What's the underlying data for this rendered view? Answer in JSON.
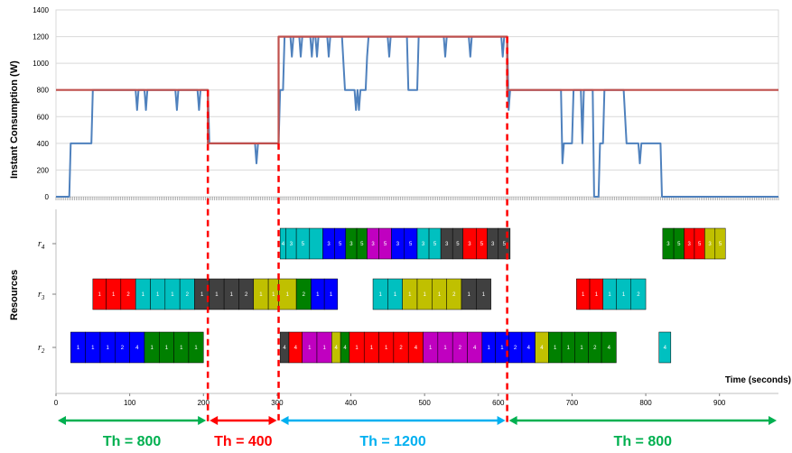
{
  "chart_data": [
    {
      "type": "line",
      "ylabel": "Instant Consumption (W)",
      "xlabel": "",
      "xlim": [
        0,
        980
      ],
      "ylim": [
        0,
        1400
      ],
      "yticks": [
        "0",
        "200",
        "400",
        "600",
        "800",
        "1000",
        "1200",
        "1400"
      ],
      "series": [
        {
          "color": "#4f81bd",
          "points": [
            [
              0,
              0
            ],
            [
              18,
              0
            ],
            [
              20,
              400
            ],
            [
              48,
              400
            ],
            [
              50,
              800
            ],
            [
              108,
              800
            ],
            [
              110,
              650
            ],
            [
              112,
              800
            ],
            [
              120,
              800
            ],
            [
              122,
              650
            ],
            [
              124,
              800
            ],
            [
              162,
              800
            ],
            [
              164,
              650
            ],
            [
              166,
              800
            ],
            [
              192,
              800
            ],
            [
              194,
              650
            ],
            [
              196,
              800
            ],
            [
              206,
              800
            ],
            [
              208,
              400
            ],
            [
              270,
              400
            ],
            [
              272,
              250
            ],
            [
              274,
              400
            ],
            [
              302,
              400
            ],
            [
              304,
              800
            ],
            [
              308,
              800
            ],
            [
              310,
              1200
            ],
            [
              318,
              1200
            ],
            [
              320,
              1050
            ],
            [
              322,
              1200
            ],
            [
              330,
              1200
            ],
            [
              332,
              1050
            ],
            [
              334,
              1200
            ],
            [
              345,
              1200
            ],
            [
              347,
              1050
            ],
            [
              349,
              1200
            ],
            [
              352,
              1200
            ],
            [
              354,
              1050
            ],
            [
              356,
              1200
            ],
            [
              368,
              1200
            ],
            [
              370,
              1050
            ],
            [
              372,
              1200
            ],
            [
              388,
              1200
            ],
            [
              392,
              800
            ],
            [
              405,
              800
            ],
            [
              407,
              650
            ],
            [
              409,
              800
            ],
            [
              411,
              650
            ],
            [
              413,
              800
            ],
            [
              420,
              800
            ],
            [
              422,
              1050
            ],
            [
              424,
              1200
            ],
            [
              450,
              1200
            ],
            [
              452,
              1050
            ],
            [
              454,
              1200
            ],
            [
              476,
              1200
            ],
            [
              478,
              800
            ],
            [
              490,
              800
            ],
            [
              492,
              1200
            ],
            [
              526,
              1200
            ],
            [
              528,
              1050
            ],
            [
              530,
              1200
            ],
            [
              560,
              1200
            ],
            [
              562,
              1050
            ],
            [
              564,
              1200
            ],
            [
              604,
              1200
            ],
            [
              606,
              1050
            ],
            [
              608,
              1200
            ],
            [
              612,
              1200
            ],
            [
              614,
              650
            ],
            [
              616,
              800
            ],
            [
              685,
              800
            ],
            [
              687,
              250
            ],
            [
              689,
              400
            ],
            [
              700,
              400
            ],
            [
              702,
              800
            ],
            [
              712,
              800
            ],
            [
              714,
              400
            ],
            [
              716,
              800
            ],
            [
              728,
              800
            ],
            [
              730,
              0
            ],
            [
              736,
              0
            ],
            [
              738,
              400
            ],
            [
              742,
              400
            ],
            [
              744,
              800
            ],
            [
              770,
              800
            ],
            [
              774,
              400
            ],
            [
              790,
              400
            ],
            [
              792,
              250
            ],
            [
              794,
              400
            ],
            [
              820,
              400
            ],
            [
              822,
              0
            ],
            [
              980,
              0
            ]
          ]
        },
        {
          "color": "#c0504d",
          "points": [
            [
              0,
              800
            ],
            [
              206,
              800
            ],
            [
              206,
              400
            ],
            [
              302,
              400
            ],
            [
              302,
              1200
            ],
            [
              612,
              1200
            ],
            [
              612,
              800
            ],
            [
              980,
              800
            ]
          ]
        }
      ],
      "thresholds": [
        {
          "label": "Th = 800",
          "range": [
            0,
            206
          ],
          "color": "#00b050"
        },
        {
          "label": "Th = 400",
          "range": [
            206,
            302
          ],
          "color": "#ff0000"
        },
        {
          "label": "Th = 1200",
          "range": [
            302,
            612
          ],
          "color": "#00b0f0"
        },
        {
          "label": "Th = 800",
          "range": [
            612,
            980
          ],
          "color": "#00b050"
        }
      ]
    },
    {
      "type": "gantt",
      "ylabel": "Resources",
      "xlabel": "Time (seconds)",
      "xlim": [
        0,
        980
      ],
      "xticks": [
        "0",
        "100",
        "200",
        "300",
        "400",
        "500",
        "600",
        "700",
        "800",
        "900"
      ],
      "resources": [
        "r4",
        "r3",
        "r2"
      ],
      "palette": {
        "1": "#0000ff",
        "2": "#ff0000",
        "3": "#00c0c0",
        "4": "#404040",
        "5": "#008000",
        "6": "#c0c000",
        "7": "#c000c0"
      },
      "rows": {
        "r4": [
          {
            "s": 304,
            "e": 312,
            "lbl": "4",
            "c": "3"
          },
          {
            "s": 312,
            "e": 326,
            "lbl": "3",
            "c": "3"
          },
          {
            "s": 326,
            "e": 344,
            "lbl": "5",
            "c": "3"
          },
          {
            "s": 344,
            "e": 362,
            "lbl": "",
            "c": "3"
          },
          {
            "s": 362,
            "e": 378,
            "lbl": "3",
            "c": "1"
          },
          {
            "s": 378,
            "e": 393,
            "lbl": "5",
            "c": "1"
          },
          {
            "s": 393,
            "e": 408,
            "lbl": "3",
            "c": "5"
          },
          {
            "s": 408,
            "e": 422,
            "lbl": "5",
            "c": "5"
          },
          {
            "s": 422,
            "e": 438,
            "lbl": "3",
            "c": "7"
          },
          {
            "s": 438,
            "e": 455,
            "lbl": "5",
            "c": "7"
          },
          {
            "s": 455,
            "e": 472,
            "lbl": "3",
            "c": "1"
          },
          {
            "s": 472,
            "e": 490,
            "lbl": "5",
            "c": "1"
          },
          {
            "s": 490,
            "e": 506,
            "lbl": "3",
            "c": "3"
          },
          {
            "s": 506,
            "e": 522,
            "lbl": "5",
            "c": "3"
          },
          {
            "s": 522,
            "e": 538,
            "lbl": "3",
            "c": "4"
          },
          {
            "s": 538,
            "e": 552,
            "lbl": "5",
            "c": "4"
          },
          {
            "s": 552,
            "e": 570,
            "lbl": "3",
            "c": "2"
          },
          {
            "s": 570,
            "e": 585,
            "lbl": "5",
            "c": "2"
          },
          {
            "s": 585,
            "e": 600,
            "lbl": "3",
            "c": "4"
          },
          {
            "s": 600,
            "e": 616,
            "lbl": "5",
            "c": "4"
          },
          {
            "s": 823,
            "e": 838,
            "lbl": "3",
            "c": "5"
          },
          {
            "s": 838,
            "e": 852,
            "lbl": "5",
            "c": "5"
          },
          {
            "s": 852,
            "e": 866,
            "lbl": "3",
            "c": "2"
          },
          {
            "s": 866,
            "e": 880,
            "lbl": "5",
            "c": "2"
          },
          {
            "s": 880,
            "e": 894,
            "lbl": "3",
            "c": "6"
          },
          {
            "s": 894,
            "e": 908,
            "lbl": "5",
            "c": "6"
          }
        ],
        "r3": [
          {
            "s": 50,
            "e": 68,
            "lbl": "1",
            "c": "2"
          },
          {
            "s": 68,
            "e": 88,
            "lbl": "1",
            "c": "2"
          },
          {
            "s": 88,
            "e": 108,
            "lbl": "2",
            "c": "2"
          },
          {
            "s": 108,
            "e": 128,
            "lbl": "1",
            "c": "3"
          },
          {
            "s": 128,
            "e": 148,
            "lbl": "1",
            "c": "3"
          },
          {
            "s": 148,
            "e": 168,
            "lbl": "1",
            "c": "3"
          },
          {
            "s": 168,
            "e": 188,
            "lbl": "2",
            "c": "3"
          },
          {
            "s": 188,
            "e": 208,
            "lbl": "1",
            "c": "4"
          },
          {
            "s": 208,
            "e": 228,
            "lbl": "1",
            "c": "4"
          },
          {
            "s": 228,
            "e": 248,
            "lbl": "1",
            "c": "4"
          },
          {
            "s": 248,
            "e": 268,
            "lbl": "2",
            "c": "4"
          },
          {
            "s": 268,
            "e": 288,
            "lbl": "1",
            "c": "6"
          },
          {
            "s": 288,
            "e": 302,
            "lbl": "1",
            "c": "6"
          },
          {
            "s": 302,
            "e": 326,
            "lbl": "1",
            "c": "6"
          },
          {
            "s": 326,
            "e": 346,
            "lbl": "2",
            "c": "5"
          },
          {
            "s": 346,
            "e": 364,
            "lbl": "1",
            "c": "1"
          },
          {
            "s": 364,
            "e": 382,
            "lbl": "1",
            "c": "1"
          },
          {
            "s": 430,
            "e": 450,
            "lbl": "1",
            "c": "3"
          },
          {
            "s": 450,
            "e": 470,
            "lbl": "1",
            "c": "3"
          },
          {
            "s": 470,
            "e": 490,
            "lbl": "1",
            "c": "6"
          },
          {
            "s": 490,
            "e": 510,
            "lbl": "1",
            "c": "6"
          },
          {
            "s": 510,
            "e": 530,
            "lbl": "1",
            "c": "6"
          },
          {
            "s": 530,
            "e": 550,
            "lbl": "2",
            "c": "6"
          },
          {
            "s": 550,
            "e": 570,
            "lbl": "1",
            "c": "4"
          },
          {
            "s": 570,
            "e": 590,
            "lbl": "1",
            "c": "4"
          },
          {
            "s": 706,
            "e": 724,
            "lbl": "1",
            "c": "2"
          },
          {
            "s": 724,
            "e": 742,
            "lbl": "1",
            "c": "2"
          },
          {
            "s": 742,
            "e": 760,
            "lbl": "1",
            "c": "3"
          },
          {
            "s": 760,
            "e": 780,
            "lbl": "1",
            "c": "3"
          },
          {
            "s": 780,
            "e": 800,
            "lbl": "2",
            "c": "3"
          }
        ],
        "r2": [
          {
            "s": 20,
            "e": 40,
            "lbl": "1",
            "c": "1"
          },
          {
            "s": 40,
            "e": 60,
            "lbl": "1",
            "c": "1"
          },
          {
            "s": 60,
            "e": 80,
            "lbl": "1",
            "c": "1"
          },
          {
            "s": 80,
            "e": 100,
            "lbl": "2",
            "c": "1"
          },
          {
            "s": 100,
            "e": 120,
            "lbl": "4",
            "c": "1"
          },
          {
            "s": 120,
            "e": 140,
            "lbl": "1",
            "c": "5"
          },
          {
            "s": 140,
            "e": 160,
            "lbl": "1",
            "c": "5"
          },
          {
            "s": 160,
            "e": 180,
            "lbl": "1",
            "c": "5"
          },
          {
            "s": 180,
            "e": 200,
            "lbl": "1",
            "c": "5"
          },
          {
            "s": 304,
            "e": 316,
            "lbl": "4",
            "c": "4"
          },
          {
            "s": 316,
            "e": 334,
            "lbl": "4",
            "c": "2"
          },
          {
            "s": 334,
            "e": 354,
            "lbl": "1",
            "c": "7"
          },
          {
            "s": 354,
            "e": 374,
            "lbl": "1",
            "c": "7"
          },
          {
            "s": 374,
            "e": 386,
            "lbl": "4",
            "c": "6"
          },
          {
            "s": 386,
            "e": 398,
            "lbl": "4",
            "c": "5"
          },
          {
            "s": 398,
            "e": 418,
            "lbl": "1",
            "c": "2"
          },
          {
            "s": 418,
            "e": 438,
            "lbl": "1",
            "c": "2"
          },
          {
            "s": 438,
            "e": 458,
            "lbl": "1",
            "c": "2"
          },
          {
            "s": 458,
            "e": 478,
            "lbl": "2",
            "c": "2"
          },
          {
            "s": 478,
            "e": 498,
            "lbl": "4",
            "c": "2"
          },
          {
            "s": 498,
            "e": 518,
            "lbl": "1",
            "c": "7"
          },
          {
            "s": 518,
            "e": 538,
            "lbl": "1",
            "c": "7"
          },
          {
            "s": 538,
            "e": 558,
            "lbl": "2",
            "c": "7"
          },
          {
            "s": 558,
            "e": 578,
            "lbl": "4",
            "c": "7"
          },
          {
            "s": 578,
            "e": 596,
            "lbl": "1",
            "c": "1"
          },
          {
            "s": 596,
            "e": 614,
            "lbl": "1",
            "c": "1"
          },
          {
            "s": 614,
            "e": 632,
            "lbl": "2",
            "c": "1"
          },
          {
            "s": 632,
            "e": 650,
            "lbl": "4",
            "c": "1"
          },
          {
            "s": 650,
            "e": 668,
            "lbl": "4",
            "c": "6"
          },
          {
            "s": 668,
            "e": 686,
            "lbl": "1",
            "c": "5"
          },
          {
            "s": 686,
            "e": 704,
            "lbl": "1",
            "c": "5"
          },
          {
            "s": 704,
            "e": 722,
            "lbl": "1",
            "c": "5"
          },
          {
            "s": 722,
            "e": 740,
            "lbl": "2",
            "c": "5"
          },
          {
            "s": 740,
            "e": 760,
            "lbl": "4",
            "c": "5"
          },
          {
            "s": 818,
            "e": 834,
            "lbl": "4",
            "c": "3"
          }
        ]
      }
    }
  ]
}
